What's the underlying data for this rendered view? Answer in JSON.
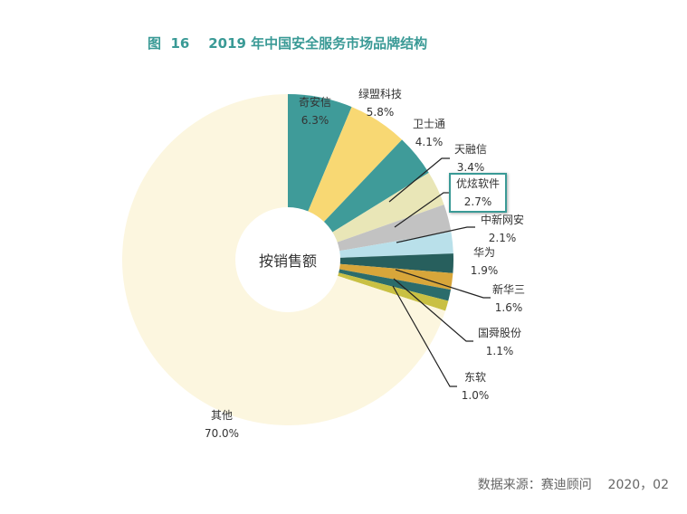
{
  "title": "图  16    2019 年中国安全服务市场品牌结构",
  "source": "数据来源：赛迪顾问    2020，02",
  "chart_data": {
    "type": "pie",
    "donut": true,
    "center_label": "按销售额",
    "unit": "%",
    "start": "top, clockwise",
    "slices": [
      {
        "label": "奇安信",
        "value": 6.3,
        "display": "6.3%",
        "color": "#3f9b99"
      },
      {
        "label": "绿盟科技",
        "value": 5.8,
        "display": "5.8%",
        "color": "#f8d873"
      },
      {
        "label": "卫士通",
        "value": 4.1,
        "display": "4.1%",
        "color": "#3f9b99"
      },
      {
        "label": "天融信",
        "value": 3.4,
        "display": "3.4%",
        "color": "#e9e6b7"
      },
      {
        "label": "优炫软件",
        "value": 2.7,
        "display": "2.7%",
        "color": "#c2c2c2",
        "highlighted": true
      },
      {
        "label": "中新网安",
        "value": 2.1,
        "display": "2.1%",
        "color": "#b9e0ea"
      },
      {
        "label": "华为",
        "value": 1.9,
        "display": "1.9%",
        "color": "#275f5d"
      },
      {
        "label": "新华三",
        "value": 1.6,
        "display": "1.6%",
        "color": "#d8a63a"
      },
      {
        "label": "国舜股份",
        "value": 1.1,
        "display": "1.1%",
        "color": "#2b6c6b"
      },
      {
        "label": "东软",
        "value": 1.0,
        "display": "1.0%",
        "color": "#c9c043"
      },
      {
        "label": "其他",
        "value": 70.0,
        "display": "70.0%",
        "color": "#fcf6df"
      }
    ]
  }
}
